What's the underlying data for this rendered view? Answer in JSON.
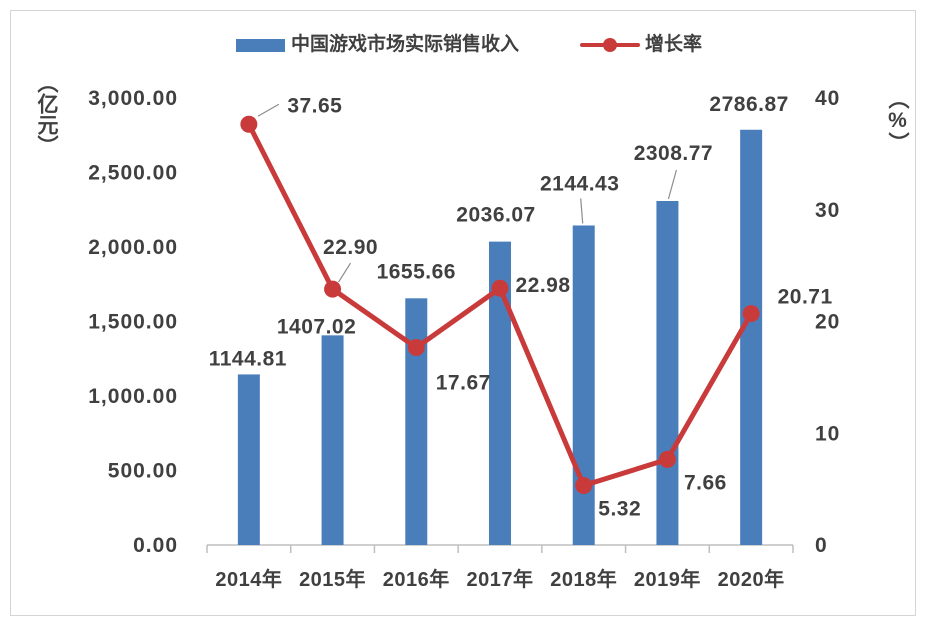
{
  "chart_data": {
    "type": "bar",
    "categories": [
      "2014年",
      "2015年",
      "2016年",
      "2017年",
      "2018年",
      "2019年",
      "2020年"
    ],
    "series": [
      {
        "name": "中国游戏市场实际销售收入",
        "type": "bar",
        "axis": "left",
        "color": "#4a7ebb",
        "values": [
          1144.81,
          1407.02,
          1655.66,
          2036.07,
          2144.43,
          2308.77,
          2786.87
        ],
        "labels": [
          "1144.81",
          "1407.02",
          "1655.66",
          "2036.07",
          "2144.43",
          "2308.77",
          "2786.87"
        ]
      },
      {
        "name": "增长率",
        "type": "line",
        "axis": "right",
        "color": "#c93a3a",
        "values": [
          37.65,
          22.9,
          17.67,
          22.98,
          5.32,
          7.66,
          20.71
        ],
        "labels": [
          "37.65",
          "22.90",
          "17.67",
          "22.98",
          "5.32",
          "7.66",
          "20.71"
        ]
      }
    ],
    "y_left": {
      "label": "（亿元）",
      "range": [
        0,
        3000
      ],
      "ticks": [
        0,
        500,
        1000,
        1500,
        2000,
        2500,
        3000
      ],
      "tick_labels": [
        "0.00",
        "500.00",
        "1,000.00",
        "1,500.00",
        "2,000.00",
        "2,500.00",
        "3,000.00"
      ]
    },
    "y_right": {
      "label": "（%）",
      "range": [
        0,
        40
      ],
      "ticks": [
        0,
        10,
        20,
        30,
        40
      ],
      "tick_labels": [
        "0",
        "10",
        "20",
        "30",
        "40"
      ]
    },
    "legend": "top",
    "grid": false
  }
}
